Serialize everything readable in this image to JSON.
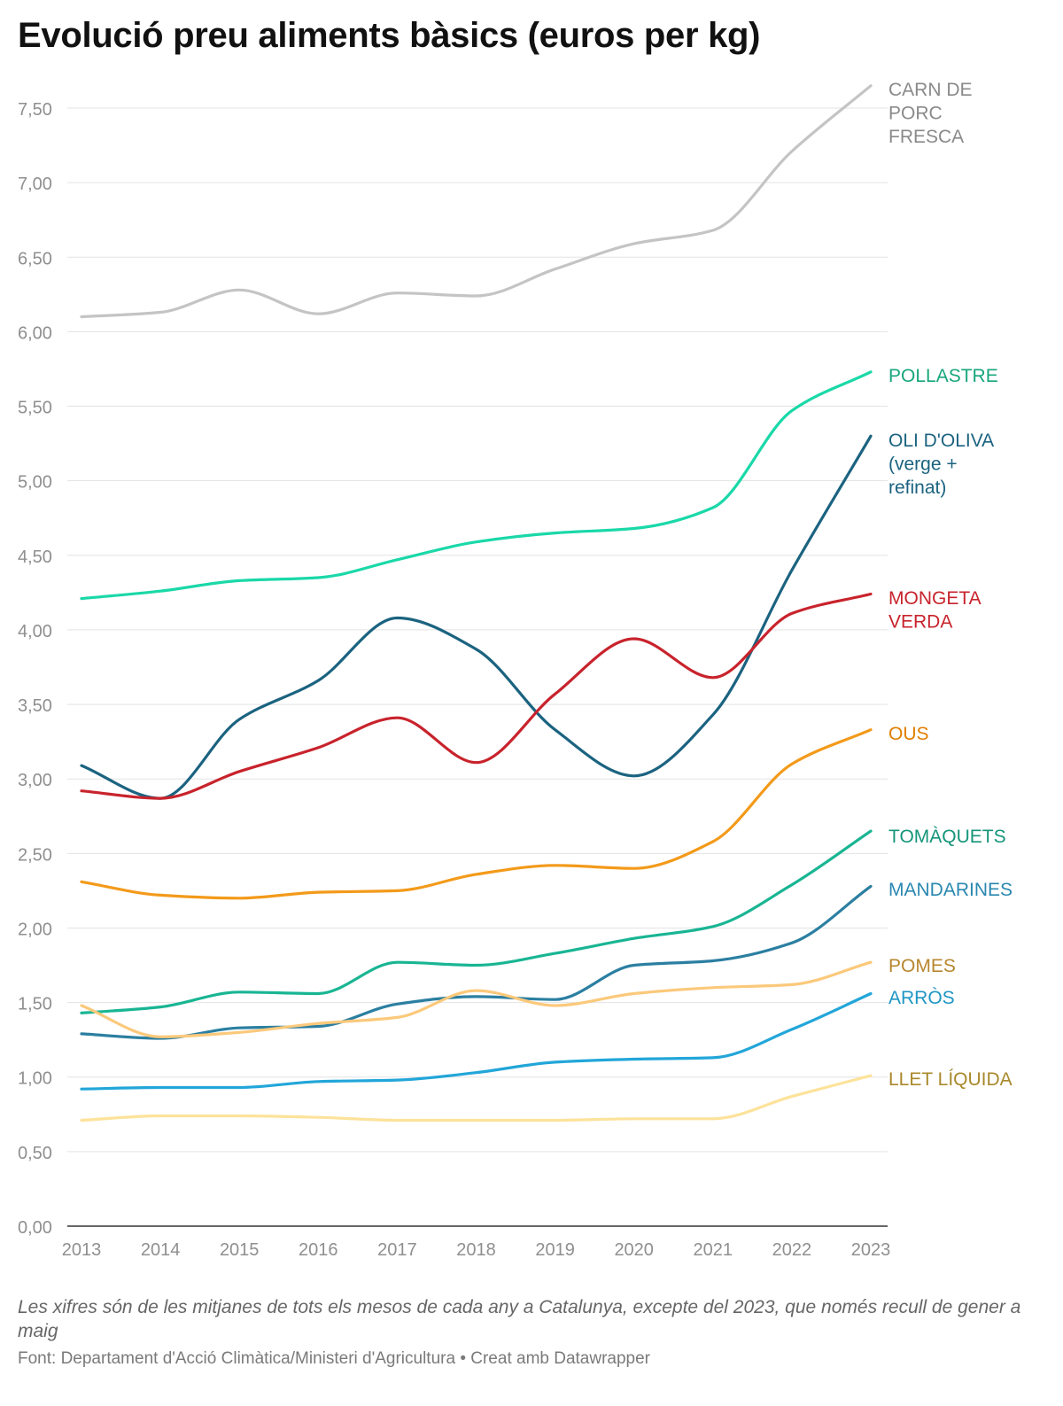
{
  "title": "Evolució preu aliments bàsics (euros per kg)",
  "note": "Les xifres són de les mitjanes de tots els mesos de cada any a Catalunya, excepte del 2023, que només recull de gener a maig",
  "source": "Font: Departament d'Acció Climàtica/Ministeri d'Agricultura • Creat amb Datawrapper",
  "chart_data": {
    "type": "line",
    "title": "Evolució preu aliments bàsics (euros per kg)",
    "xlabel": "",
    "ylabel": "",
    "x": [
      2013,
      2014,
      2015,
      2016,
      2017,
      2018,
      2019,
      2020,
      2021,
      2022,
      2023
    ],
    "ylim": [
      0,
      7.5
    ],
    "yticks": [
      "0,00",
      "0,50",
      "1,00",
      "1,50",
      "2,00",
      "2,50",
      "3,00",
      "3,50",
      "4,00",
      "4,50",
      "5,00",
      "5,50",
      "6,00",
      "6,50",
      "7,00",
      "7,50"
    ],
    "grid": true,
    "legend": "direct labels at line ends (right)",
    "series": [
      {
        "name": "CARN DE PORC FRESCA",
        "label_lines": [
          "CARN DE",
          "PORC",
          "FRESCA"
        ],
        "color": "#c4c4c4",
        "label_color": "#8a8a8a",
        "values": [
          6.1,
          6.13,
          6.28,
          6.12,
          6.26,
          6.24,
          6.42,
          6.59,
          6.68,
          7.21,
          7.65
        ]
      },
      {
        "name": "POLLASTRE",
        "label_lines": [
          "POLLASTRE"
        ],
        "color": "#1ad8a8",
        "label_color": "#17a67c",
        "values": [
          4.21,
          4.26,
          4.33,
          4.35,
          4.47,
          4.59,
          4.65,
          4.68,
          4.82,
          5.47,
          5.73
        ]
      },
      {
        "name": "OLI D'OLIVA (verge + refinat)",
        "label_lines": [
          "OLI D'OLIVA",
          "(verge +",
          "refinat)"
        ],
        "color": "#1b6380",
        "label_color": "#1b6380",
        "values": [
          3.09,
          2.87,
          3.4,
          3.66,
          4.08,
          3.87,
          3.33,
          3.02,
          3.43,
          4.4,
          5.3
        ]
      },
      {
        "name": "MONGETA VERDA",
        "label_lines": [
          "MONGETA",
          "VERDA"
        ],
        "color": "#c8232c",
        "label_color": "#c8232c",
        "values": [
          2.92,
          2.87,
          3.05,
          3.21,
          3.41,
          3.11,
          3.57,
          3.94,
          3.68,
          4.11,
          4.24
        ]
      },
      {
        "name": "OUS",
        "label_lines": [
          "OUS"
        ],
        "color": "#f39a1a",
        "label_color": "#e07e00",
        "values": [
          2.31,
          2.22,
          2.2,
          2.24,
          2.25,
          2.36,
          2.42,
          2.4,
          2.58,
          3.1,
          3.33
        ]
      },
      {
        "name": "TOMÀQUETS",
        "label_lines": [
          "TOMÀQUETS"
        ],
        "color": "#19b593",
        "label_color": "#16957a",
        "values": [
          1.43,
          1.47,
          1.57,
          1.56,
          1.77,
          1.75,
          1.83,
          1.93,
          2.01,
          2.29,
          2.65
        ]
      },
      {
        "name": "MANDARINES",
        "label_lines": [
          "MANDARINES"
        ],
        "color": "#2b7fa1",
        "label_color": "#2a88b0",
        "values": [
          1.29,
          1.26,
          1.33,
          1.34,
          1.49,
          1.54,
          1.52,
          1.75,
          1.78,
          1.9,
          2.28
        ]
      },
      {
        "name": "POMES",
        "label_lines": [
          "POMES"
        ],
        "color": "#fbc97b",
        "label_color": "#b8862f",
        "values": [
          1.48,
          1.27,
          1.3,
          1.36,
          1.4,
          1.58,
          1.48,
          1.56,
          1.6,
          1.62,
          1.77
        ]
      },
      {
        "name": "ARRÒS",
        "label_lines": [
          "ARRÒS"
        ],
        "color": "#22a6d9",
        "label_color": "#1f96c4",
        "values": [
          0.92,
          0.93,
          0.93,
          0.97,
          0.98,
          1.03,
          1.1,
          1.12,
          1.13,
          1.32,
          1.56
        ]
      },
      {
        "name": "LLET LÍQUIDA",
        "label_lines": [
          "LLET LÍQUIDA"
        ],
        "color": "#fde29a",
        "label_color": "#a8882a",
        "values": [
          0.71,
          0.74,
          0.74,
          0.73,
          0.71,
          0.71,
          0.71,
          0.72,
          0.72,
          0.87,
          1.01
        ]
      }
    ]
  }
}
